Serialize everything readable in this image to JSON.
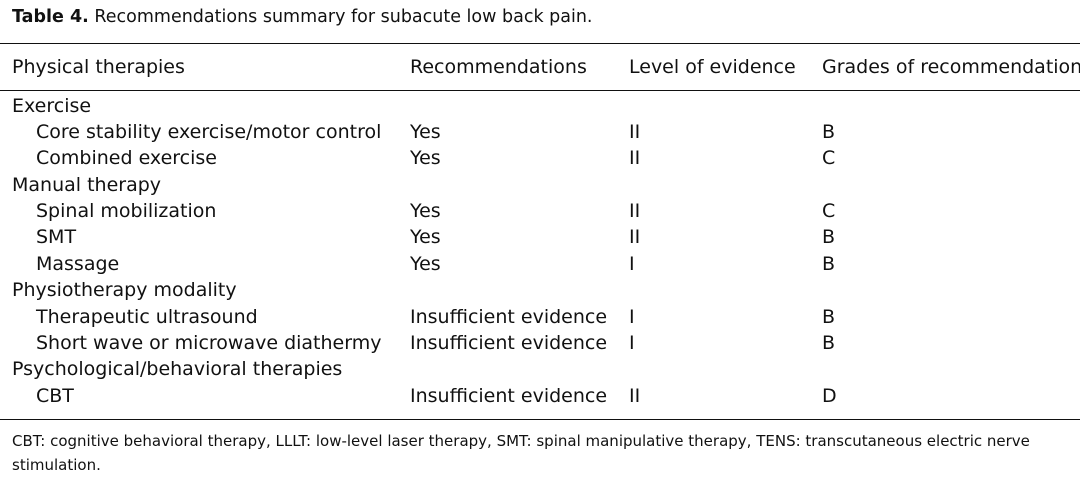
{
  "caption": {
    "label": "Table 4.",
    "text": "Recommendations summary for subacute low back pain."
  },
  "header": [
    "Physical therapies",
    "Recommendations",
    "Level of evidence",
    "Grades of recommendation"
  ],
  "groups": [
    {
      "name": "Exercise",
      "rows": [
        {
          "therapy": "Core stability exercise/motor control",
          "recommendation": "Yes",
          "level": "II",
          "grade": "B"
        },
        {
          "therapy": "Combined exercise",
          "recommendation": "Yes",
          "level": "II",
          "grade": "C"
        }
      ]
    },
    {
      "name": "Manual therapy",
      "rows": [
        {
          "therapy": "Spinal mobilization",
          "recommendation": "Yes",
          "level": "II",
          "grade": "C"
        },
        {
          "therapy": "SMT",
          "recommendation": "Yes",
          "level": "II",
          "grade": "B"
        },
        {
          "therapy": "Massage",
          "recommendation": "Yes",
          "level": "I",
          "grade": "B"
        }
      ]
    },
    {
      "name": "Physiotherapy modality",
      "rows": [
        {
          "therapy": "Therapeutic ultrasound",
          "recommendation": "Insufficient evidence",
          "level": "I",
          "grade": "B"
        },
        {
          "therapy": "Short wave or microwave diathermy",
          "recommendation": "Insufficient evidence",
          "level": "I",
          "grade": "B"
        }
      ]
    },
    {
      "name": "Psychological/behavioral therapies",
      "rows": [
        {
          "therapy": "CBT",
          "recommendation": "Insufficient evidence",
          "level": "II",
          "grade": "D"
        }
      ]
    }
  ],
  "footnote": "CBT: cognitive behavioral therapy, LLLT: low-level laser therapy, SMT: spinal manipulative therapy, TENS: transcutaneous electric nerve stimulation."
}
